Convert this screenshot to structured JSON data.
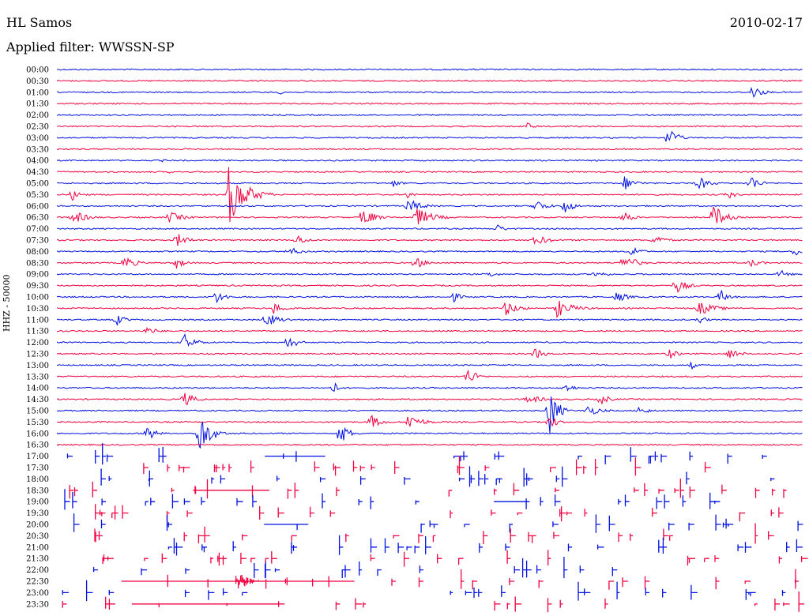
{
  "header": {
    "station": "HL Samos",
    "date": "2010-02-17",
    "filter": "Applied filter: WWSSN-SP",
    "channel_label": "HHZ - 50000"
  },
  "colors": {
    "trace_a": "#0010e0",
    "trace_b": "#f00040",
    "background": "#ffffff",
    "text": "#000000"
  },
  "chart_data": {
    "type": "line",
    "variant": "helicorder",
    "title": "HL Samos",
    "subtitle": "Applied filter: WWSSN-SP",
    "date": "2010-02-17",
    "ylabel": "HHZ - 50000",
    "xlabel": "",
    "grid": false,
    "legend": "none",
    "series_colors": [
      "#0010e0",
      "#f00040"
    ],
    "rows": [
      {
        "time": "00:00",
        "events": [
          {
            "t": 0.97,
            "amp": 2,
            "dur": 0.02
          }
        ]
      },
      {
        "time": "00:30",
        "events": []
      },
      {
        "time": "01:00",
        "events": [
          {
            "t": 0.3,
            "amp": 4,
            "dur": 0.02
          },
          {
            "t": 0.93,
            "amp": 10,
            "dur": 0.04
          }
        ]
      },
      {
        "time": "01:30",
        "events": []
      },
      {
        "time": "02:00",
        "events": []
      },
      {
        "time": "02:30",
        "events": [
          {
            "t": 0.63,
            "amp": 5,
            "dur": 0.03
          }
        ]
      },
      {
        "time": "03:00",
        "events": [
          {
            "t": 0.82,
            "amp": 16,
            "dur": 0.03
          }
        ]
      },
      {
        "time": "03:30",
        "events": []
      },
      {
        "time": "04:00",
        "events": [
          {
            "t": 0.14,
            "amp": 2,
            "dur": 0.03
          }
        ]
      },
      {
        "time": "04:30",
        "events": [
          {
            "t": 0.15,
            "amp": 2,
            "dur": 0.02
          }
        ]
      },
      {
        "time": "05:00",
        "events": [
          {
            "t": 0.45,
            "amp": 6,
            "dur": 0.03
          },
          {
            "t": 0.76,
            "amp": 10,
            "dur": 0.04
          },
          {
            "t": 0.86,
            "amp": 10,
            "dur": 0.04
          },
          {
            "t": 0.93,
            "amp": 12,
            "dur": 0.03
          }
        ]
      },
      {
        "time": "05:30",
        "events": [
          {
            "t": 0.02,
            "amp": 8,
            "dur": 0.03
          },
          {
            "t": 0.23,
            "amp": 40,
            "dur": 0.06
          },
          {
            "t": 0.47,
            "amp": 5,
            "dur": 0.03
          },
          {
            "t": 0.9,
            "amp": 6,
            "dur": 0.03
          }
        ]
      },
      {
        "time": "06:00",
        "events": [
          {
            "t": 0.47,
            "amp": 10,
            "dur": 0.05
          },
          {
            "t": 0.64,
            "amp": 10,
            "dur": 0.04
          },
          {
            "t": 0.68,
            "amp": 12,
            "dur": 0.03
          }
        ]
      },
      {
        "time": "06:30",
        "events": [
          {
            "t": 0.02,
            "amp": 10,
            "dur": 0.05
          },
          {
            "t": 0.15,
            "amp": 8,
            "dur": 0.05
          },
          {
            "t": 0.41,
            "amp": 14,
            "dur": 0.04
          },
          {
            "t": 0.48,
            "amp": 14,
            "dur": 0.06
          },
          {
            "t": 0.76,
            "amp": 10,
            "dur": 0.03
          },
          {
            "t": 0.88,
            "amp": 18,
            "dur": 0.04
          }
        ]
      },
      {
        "time": "07:00",
        "events": [
          {
            "t": 0.59,
            "amp": 6,
            "dur": 0.03
          }
        ]
      },
      {
        "time": "07:30",
        "events": [
          {
            "t": 0.16,
            "amp": 10,
            "dur": 0.04
          },
          {
            "t": 0.32,
            "amp": 8,
            "dur": 0.04
          },
          {
            "t": 0.64,
            "amp": 8,
            "dur": 0.05
          },
          {
            "t": 0.8,
            "amp": 8,
            "dur": 0.04
          }
        ]
      },
      {
        "time": "08:00",
        "events": [
          {
            "t": 0.31,
            "amp": 6,
            "dur": 0.05
          },
          {
            "t": 0.77,
            "amp": 10,
            "dur": 0.03
          },
          {
            "t": 0.99,
            "amp": 8,
            "dur": 0.02
          }
        ]
      },
      {
        "time": "08:30",
        "events": [
          {
            "t": 0.09,
            "amp": 10,
            "dur": 0.04
          },
          {
            "t": 0.16,
            "amp": 8,
            "dur": 0.03
          },
          {
            "t": 0.48,
            "amp": 8,
            "dur": 0.04
          },
          {
            "t": 0.76,
            "amp": 14,
            "dur": 0.04
          },
          {
            "t": 0.93,
            "amp": 6,
            "dur": 0.04
          }
        ]
      },
      {
        "time": "09:00",
        "events": [
          {
            "t": 0.58,
            "amp": 5,
            "dur": 0.03
          },
          {
            "t": 0.72,
            "amp": 6,
            "dur": 0.04
          },
          {
            "t": 0.97,
            "amp": 6,
            "dur": 0.03
          }
        ]
      },
      {
        "time": "09:30",
        "events": [
          {
            "t": 0.83,
            "amp": 10,
            "dur": 0.04
          }
        ]
      },
      {
        "time": "10:00",
        "events": [
          {
            "t": 0.21,
            "amp": 10,
            "dur": 0.04
          },
          {
            "t": 0.53,
            "amp": 8,
            "dur": 0.03
          },
          {
            "t": 0.75,
            "amp": 8,
            "dur": 0.04
          },
          {
            "t": 0.89,
            "amp": 10,
            "dur": 0.03
          }
        ]
      },
      {
        "time": "10:30",
        "events": [
          {
            "t": 0.29,
            "amp": 8,
            "dur": 0.04
          },
          {
            "t": 0.6,
            "amp": 10,
            "dur": 0.05
          },
          {
            "t": 0.67,
            "amp": 12,
            "dur": 0.06
          },
          {
            "t": 0.86,
            "amp": 10,
            "dur": 0.06
          }
        ]
      },
      {
        "time": "11:00",
        "events": [
          {
            "t": 0.08,
            "amp": 8,
            "dur": 0.03
          },
          {
            "t": 0.28,
            "amp": 10,
            "dur": 0.05
          },
          {
            "t": 0.86,
            "amp": 6,
            "dur": 0.03
          }
        ]
      },
      {
        "time": "11:30",
        "events": [
          {
            "t": 0.12,
            "amp": 6,
            "dur": 0.04
          }
        ]
      },
      {
        "time": "12:00",
        "events": [
          {
            "t": 0.17,
            "amp": 12,
            "dur": 0.04
          },
          {
            "t": 0.31,
            "amp": 12,
            "dur": 0.03
          }
        ]
      },
      {
        "time": "12:30",
        "events": [
          {
            "t": 0.64,
            "amp": 8,
            "dur": 0.04
          },
          {
            "t": 0.82,
            "amp": 8,
            "dur": 0.03
          },
          {
            "t": 0.9,
            "amp": 8,
            "dur": 0.04
          }
        ]
      },
      {
        "time": "13:00",
        "events": [
          {
            "t": 0.85,
            "amp": 6,
            "dur": 0.02
          }
        ]
      },
      {
        "time": "13:30",
        "events": [
          {
            "t": 0.55,
            "amp": 14,
            "dur": 0.03
          }
        ]
      },
      {
        "time": "14:00",
        "events": [
          {
            "t": 0.37,
            "amp": 10,
            "dur": 0.02
          },
          {
            "t": 0.68,
            "amp": 6,
            "dur": 0.04
          }
        ]
      },
      {
        "time": "14:30",
        "events": [
          {
            "t": 0.17,
            "amp": 10,
            "dur": 0.04
          },
          {
            "t": 0.63,
            "amp": 6,
            "dur": 0.06
          },
          {
            "t": 0.73,
            "amp": 8,
            "dur": 0.03
          }
        ]
      },
      {
        "time": "15:00",
        "events": [
          {
            "t": 0.66,
            "amp": 34,
            "dur": 0.03
          },
          {
            "t": 0.71,
            "amp": 8,
            "dur": 0.05
          },
          {
            "t": 0.78,
            "amp": 6,
            "dur": 0.04
          }
        ]
      },
      {
        "time": "15:30",
        "events": [
          {
            "t": 0.42,
            "amp": 10,
            "dur": 0.04
          },
          {
            "t": 0.47,
            "amp": 12,
            "dur": 0.05
          },
          {
            "t": 0.66,
            "amp": 10,
            "dur": 0.03
          }
        ]
      },
      {
        "time": "16:00",
        "events": [
          {
            "t": 0.12,
            "amp": 12,
            "dur": 0.03
          },
          {
            "t": 0.19,
            "amp": 30,
            "dur": 0.04
          },
          {
            "t": 0.38,
            "amp": 16,
            "dur": 0.03
          }
        ]
      },
      {
        "time": "16:30",
        "events": []
      },
      {
        "time": "17:00",
        "events": []
      },
      {
        "time": "17:30",
        "events": []
      },
      {
        "time": "18:00",
        "events": []
      },
      {
        "time": "18:30",
        "events": []
      },
      {
        "time": "19:00",
        "events": []
      },
      {
        "time": "19:30",
        "events": []
      },
      {
        "time": "20:00",
        "events": []
      },
      {
        "time": "20:30",
        "events": []
      },
      {
        "time": "21:00",
        "events": []
      },
      {
        "time": "21:30",
        "events": []
      },
      {
        "time": "22:00",
        "events": []
      },
      {
        "time": "22:30",
        "events": [
          {
            "t": 0.24,
            "amp": 16,
            "dur": 0.04
          }
        ]
      },
      {
        "time": "23:00",
        "events": []
      },
      {
        "time": "23:30",
        "events": []
      }
    ],
    "continuous_trace_until_row": 33,
    "spike_rows_from": 34
  }
}
